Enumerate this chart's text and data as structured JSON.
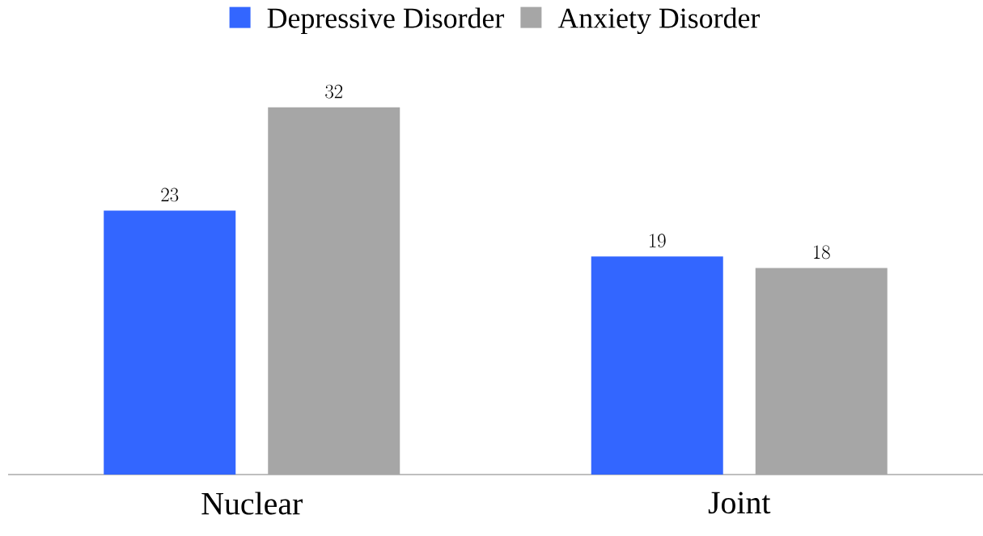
{
  "chart_data": {
    "type": "bar",
    "categories": [
      "Nuclear",
      "Joint"
    ],
    "series": [
      {
        "name": "Depressive Disorder",
        "color": "#3366ff",
        "values": [
          23,
          19
        ]
      },
      {
        "name": "Anxiety Disorder",
        "color": "#a6a6a6",
        "values": [
          32,
          18
        ]
      }
    ],
    "data_labels": true,
    "legend": "top"
  }
}
